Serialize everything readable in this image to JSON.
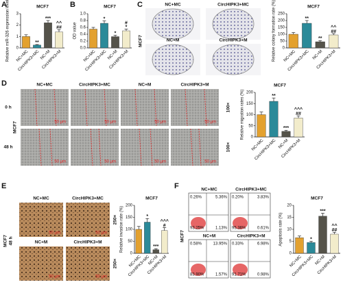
{
  "panel_letters": [
    "A",
    "B",
    "C",
    "D",
    "E",
    "F"
  ],
  "chart_data": [
    {
      "type": "bar",
      "title": "MCF7",
      "ylabel": "Relative miR-326 expression level",
      "categories": [
        "NC+MC",
        "CircHIPK3+MC",
        "NC+M",
        "CircHIPK3+M"
      ],
      "values": [
        1.0,
        0.25,
        2.2,
        1.4
      ],
      "errors": [
        0.15,
        0.05,
        0.2,
        0.2
      ],
      "colors": [
        "#e3a12f",
        "#2b8a99",
        "#55534a",
        "#f2eccb"
      ],
      "annotations": [
        [],
        [
          "**"
        ],
        [
          "***"
        ],
        [
          "^^",
          "##"
        ]
      ],
      "ylim": [
        0,
        3
      ],
      "yticks": [
        0,
        1,
        2,
        3
      ]
    },
    {
      "type": "bar",
      "title": "MCF7",
      "ylabel": "OD value",
      "categories": [
        "NC+MC",
        "CircHIPK3+MC",
        "NC+M",
        "CircHIPK3+M"
      ],
      "values": [
        0.55,
        0.72,
        0.33,
        0.5
      ],
      "errors": [
        0.05,
        0.07,
        0.04,
        0.05
      ],
      "colors": [
        "#e3a12f",
        "#2b8a99",
        "#55534a",
        "#f2eccb"
      ],
      "annotations": [
        [],
        [
          "*"
        ],
        [
          "*"
        ],
        [
          "#",
          "*"
        ]
      ],
      "ylim": [
        0,
        1
      ],
      "yticks": [
        {
          "value": 0,
          "label": "0.0"
        },
        0.2,
        0.4,
        0.6,
        0.8,
        {
          "value": 1,
          "label": "1.0"
        }
      ]
    },
    {
      "type": "bar",
      "title": "MCF7",
      "ylabel": "Relative colony formation rate (%)",
      "categories": [
        "NC+MC",
        "CircHIPK3+MC",
        "NC+M",
        "CircHIPK3+M"
      ],
      "values": [
        100,
        180,
        45,
        95
      ],
      "errors": [
        12,
        20,
        8,
        10
      ],
      "colors": [
        "#e3a12f",
        "#2b8a99",
        "#55534a",
        "#f2eccb"
      ],
      "annotations": [
        [],
        [
          "**"
        ],
        [
          "**"
        ],
        [
          "^^",
          "##"
        ]
      ],
      "ylim": [
        0,
        250
      ],
      "yticks": [
        0,
        50,
        100,
        150,
        200,
        250
      ]
    },
    {
      "type": "bar",
      "title": "MCF7",
      "ylabel": "Relative migration rates (%)",
      "categories": [
        "NC+MC",
        "CircHIPK3+MC",
        "NC+M",
        "CircHIPK3+M"
      ],
      "values": [
        100,
        160,
        25,
        85
      ],
      "errors": [
        12,
        15,
        5,
        10
      ],
      "colors": [
        "#e3a12f",
        "#2b8a99",
        "#55534a",
        "#f2eccb"
      ],
      "annotations": [
        [],
        [
          "**"
        ],
        [
          "***"
        ],
        [
          "^^^",
          "##"
        ]
      ],
      "ylim": [
        0,
        200
      ],
      "yticks": [
        0,
        50,
        100,
        150,
        200
      ]
    },
    {
      "type": "bar",
      "title": "MCF7",
      "ylabel": "Relative invasion rate (%)",
      "categories": [
        "NC+MC",
        "CircHIPK3+MC",
        "NC+M",
        "CircHIPK3+M"
      ],
      "values": [
        100,
        130,
        15,
        95
      ],
      "errors": [
        12,
        15,
        4,
        12
      ],
      "colors": [
        "#e3a12f",
        "#2b8a99",
        "#55534a",
        "#f2eccb"
      ],
      "annotations": [
        [],
        [
          "*"
        ],
        [
          "***"
        ],
        [
          "^^^",
          "#"
        ]
      ],
      "ylim": [
        0,
        200
      ],
      "yticks": [
        0,
        50,
        100,
        150,
        200
      ]
    },
    {
      "type": "bar",
      "title": "MCF7",
      "ylabel": "Apoptosis rate (%)",
      "categories": [
        "NC+MC",
        "CircHIPK3+MC",
        "NC+M",
        "CircHIPK3+M"
      ],
      "values": [
        6.5,
        4.5,
        15.5,
        8
      ],
      "errors": [
        0.7,
        0.5,
        1.2,
        0.8
      ],
      "colors": [
        "#e3a12f",
        "#2b8a99",
        "#55534a",
        "#f2eccb"
      ],
      "annotations": [
        [],
        [
          "*"
        ],
        [
          "***"
        ],
        [
          "^^",
          "##"
        ]
      ],
      "ylim": [
        0,
        20
      ],
      "yticks": [
        0,
        5,
        10,
        15,
        20
      ]
    }
  ],
  "image_panels": {
    "C": {
      "labels": [
        "NC+MC",
        "CircHIPK3+MC",
        "NC+M",
        "CircHIPK3+M"
      ],
      "cell_line": "MCF7"
    },
    "D": {
      "labels": [
        "NC+MC",
        "CircHIPK3+MC",
        "NC+M",
        "CircHIPK3+M"
      ],
      "rows": [
        "0 h",
        "48 h"
      ],
      "cell_line": "MCF7",
      "magnification": "100×",
      "scale": "50 μm"
    },
    "E": {
      "labels": [
        "NC+MC",
        "CircHIPK3+MC",
        "NC+M",
        "CircHIPK3+M"
      ],
      "cell_line": "MCF7",
      "time": "48 h",
      "magnification": "250×",
      "scale": "50 μm"
    },
    "F": {
      "labels": [
        "NC+MC",
        "CircHIPK3+MC",
        "NC+M",
        "CircHIPK3+M"
      ],
      "cell_line": "MCF7",
      "quadrants": [
        [
          "0.26%",
          "5.36%",
          "93.25%",
          "1.13%"
        ],
        [
          "0.20%",
          "3.83%",
          "95.36%",
          "0.61%"
        ],
        [
          "0.58%",
          "13.95%",
          "83.90%",
          "1.57%"
        ],
        [
          "0.33%",
          "6.98%",
          "91.71%",
          "0.98%"
        ]
      ]
    }
  }
}
